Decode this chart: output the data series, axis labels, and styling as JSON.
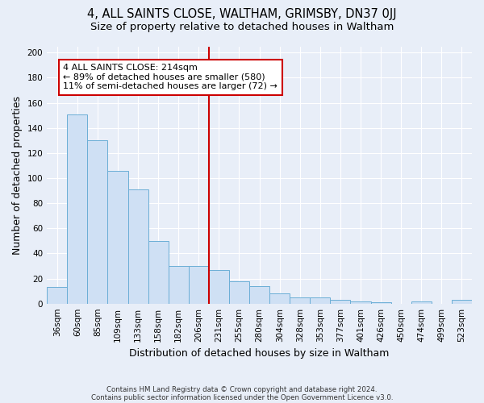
{
  "title": "4, ALL SAINTS CLOSE, WALTHAM, GRIMSBY, DN37 0JJ",
  "subtitle": "Size of property relative to detached houses in Waltham",
  "xlabel": "Distribution of detached houses by size in Waltham",
  "ylabel": "Number of detached properties",
  "footnote1": "Contains HM Land Registry data © Crown copyright and database right 2024.",
  "footnote2": "Contains public sector information licensed under the Open Government Licence v3.0.",
  "bar_labels": [
    "36sqm",
    "60sqm",
    "85sqm",
    "109sqm",
    "133sqm",
    "158sqm",
    "182sqm",
    "206sqm",
    "231sqm",
    "255sqm",
    "280sqm",
    "304sqm",
    "328sqm",
    "353sqm",
    "377sqm",
    "401sqm",
    "426sqm",
    "450sqm",
    "474sqm",
    "499sqm",
    "523sqm"
  ],
  "bar_values": [
    13,
    151,
    130,
    106,
    91,
    50,
    30,
    30,
    27,
    18,
    14,
    8,
    5,
    5,
    3,
    2,
    1,
    0,
    2,
    0,
    3
  ],
  "bar_color": "#cfe0f4",
  "bar_edgecolor": "#6baed6",
  "vline_bar_index": 7.5,
  "vline_color": "#cc0000",
  "annotation_text_line1": "4 ALL SAINTS CLOSE: 214sqm",
  "annotation_text_line2": "← 89% of detached houses are smaller (580)",
  "annotation_text_line3": "11% of semi-detached houses are larger (72) →",
  "annotation_box_edgecolor": "#cc0000",
  "annotation_fontsize": 8,
  "yticks": [
    0,
    20,
    40,
    60,
    80,
    100,
    120,
    140,
    160,
    180,
    200
  ],
  "ylim": [
    0,
    205
  ],
  "bg_color": "#e8eef8",
  "plot_bg_color": "#e8eef8",
  "grid_color": "#ffffff",
  "title_fontsize": 10.5,
  "subtitle_fontsize": 9.5,
  "tick_fontsize": 7.5,
  "ylabel_fontsize": 9,
  "xlabel_fontsize": 9
}
